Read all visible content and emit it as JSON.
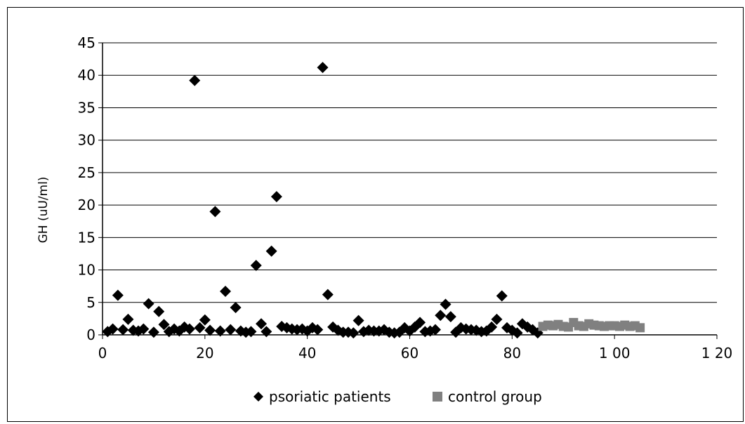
{
  "chart_data": {
    "type": "scatter",
    "title": "",
    "xlabel": "",
    "ylabel": "GH (uU/ml)",
    "xlim": [
      0,
      120
    ],
    "ylim": [
      0,
      45
    ],
    "xticks": [
      0,
      20,
      40,
      60,
      80,
      100,
      120
    ],
    "xtick_labels": [
      "0",
      "20",
      "40",
      "60",
      "80",
      "1 00",
      "1 20"
    ],
    "yticks": [
      0,
      5,
      10,
      15,
      20,
      25,
      30,
      35,
      40,
      45
    ],
    "ytick_labels": [
      "0",
      "5",
      "10",
      "15",
      "20",
      "25",
      "30",
      "35",
      "40",
      "45"
    ],
    "grid": "horizontal",
    "legend_position": "bottom",
    "series": [
      {
        "name": "psoriatic patients",
        "marker": "diamond",
        "color": "#000000",
        "x": [
          1,
          2,
          3,
          4,
          5,
          6,
          7,
          8,
          9,
          10,
          11,
          12,
          13,
          14,
          15,
          16,
          17,
          18,
          19,
          20,
          21,
          22,
          23,
          24,
          25,
          26,
          27,
          28,
          29,
          30,
          31,
          32,
          33,
          34,
          35,
          36,
          37,
          38,
          39,
          40,
          41,
          42,
          43,
          44,
          45,
          46,
          47,
          48,
          49,
          50,
          51,
          52,
          53,
          54,
          55,
          56,
          57,
          58,
          59,
          60,
          61,
          62,
          63,
          64,
          65,
          66,
          67,
          68,
          69,
          70,
          71,
          72,
          73,
          74,
          75,
          76,
          77,
          78,
          79,
          80,
          81,
          82,
          83,
          84,
          85
        ],
        "y": [
          0.5,
          0.9,
          6.1,
          0.8,
          2.4,
          0.7,
          0.6,
          0.9,
          4.8,
          0.4,
          3.6,
          1.6,
          0.5,
          0.9,
          0.6,
          1.2,
          0.9,
          39.2,
          1.1,
          2.3,
          0.7,
          19.0,
          0.6,
          6.7,
          0.8,
          4.2,
          0.6,
          0.4,
          0.5,
          10.7,
          1.7,
          0.5,
          12.9,
          21.3,
          1.3,
          1.1,
          0.9,
          0.8,
          0.9,
          0.6,
          1.1,
          0.8,
          41.2,
          6.2,
          1.2,
          0.7,
          0.4,
          0.4,
          0.3,
          2.2,
          0.5,
          0.7,
          0.6,
          0.6,
          0.8,
          0.4,
          0.3,
          0.4,
          1.1,
          0.6,
          1.2,
          1.9,
          0.5,
          0.6,
          0.8,
          3.0,
          4.7,
          2.8,
          0.4,
          1.1,
          0.9,
          0.8,
          0.7,
          0.5,
          0.6,
          1.2,
          2.4,
          6.0,
          1.1,
          0.7,
          0.3,
          1.7,
          1.2,
          0.8,
          0.3
        ]
      },
      {
        "name": "control group",
        "marker": "square",
        "color": "#808080",
        "x": [
          86,
          87,
          88,
          89,
          90,
          91,
          92,
          93,
          94,
          95,
          96,
          97,
          98,
          99,
          100,
          101,
          102,
          103,
          104,
          105
        ],
        "y": [
          1.3,
          1.5,
          1.4,
          1.6,
          1.3,
          1.2,
          1.9,
          1.4,
          1.3,
          1.7,
          1.5,
          1.4,
          1.3,
          1.4,
          1.4,
          1.3,
          1.5,
          1.3,
          1.4,
          1.1
        ]
      }
    ]
  }
}
